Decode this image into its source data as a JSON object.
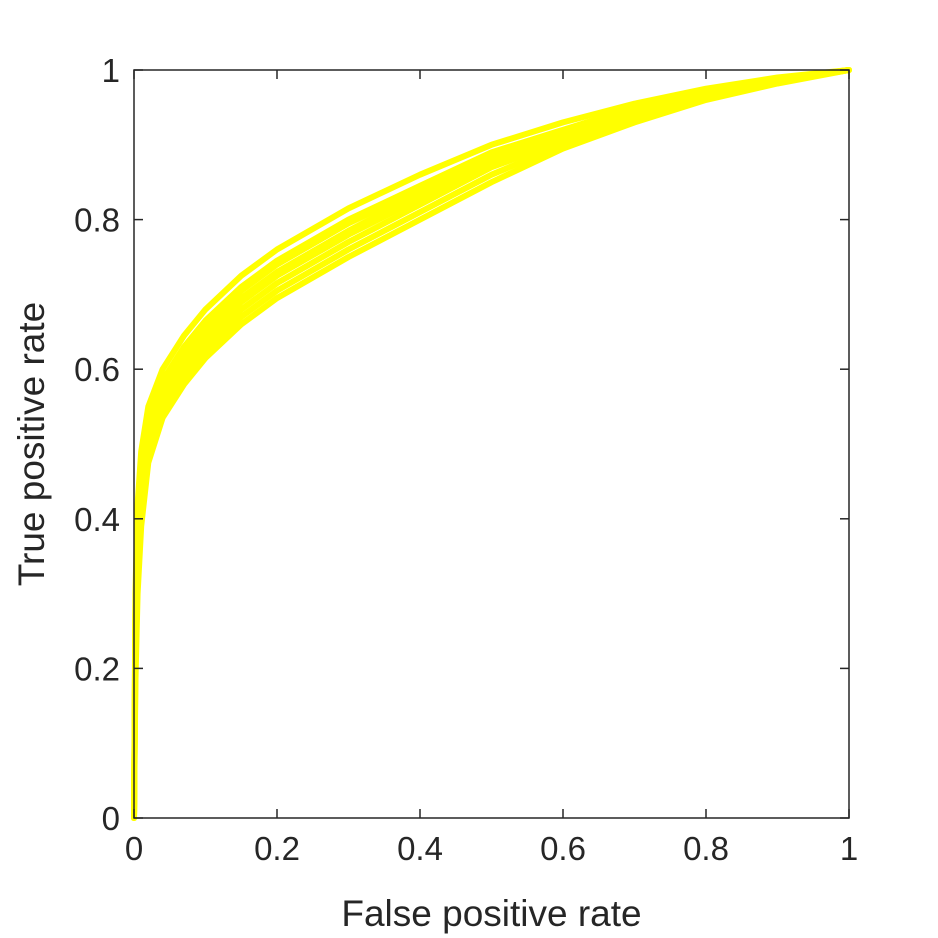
{
  "chart_data": {
    "type": "line",
    "title": "",
    "xlabel": "False positive rate",
    "ylabel": "True positive rate",
    "xlim": [
      0,
      1
    ],
    "ylim": [
      0,
      1
    ],
    "grid": false,
    "legend": "none",
    "x_ticks": [
      0,
      0.2,
      0.4,
      0.6,
      0.8,
      1
    ],
    "x_tick_labels": [
      "0",
      "0.2",
      "0.4",
      "0.6",
      "0.8",
      "1"
    ],
    "y_ticks": [
      0,
      0.2,
      0.4,
      0.6,
      0.8,
      1
    ],
    "y_tick_labels": [
      "0",
      "0.2",
      "0.4",
      "0.6",
      "0.8",
      "1"
    ],
    "series_color": "#ffff00",
    "series": [
      {
        "x": [
          0,
          0.002,
          0.005,
          0.01,
          0.02,
          0.04,
          0.07,
          0.1,
          0.15,
          0.2,
          0.3,
          0.4,
          0.5,
          0.6,
          0.7,
          0.8,
          0.9,
          1.0
        ],
        "y": [
          0,
          0.3,
          0.42,
          0.49,
          0.55,
          0.6,
          0.645,
          0.68,
          0.725,
          0.76,
          0.815,
          0.86,
          0.9,
          0.93,
          0.955,
          0.975,
          0.99,
          1.0
        ]
      },
      {
        "x": [
          0,
          0.002,
          0.005,
          0.01,
          0.02,
          0.04,
          0.07,
          0.1,
          0.15,
          0.2,
          0.3,
          0.4,
          0.5,
          0.6,
          0.7,
          0.8,
          0.9,
          1.0
        ],
        "y": [
          0,
          0.28,
          0.4,
          0.47,
          0.53,
          0.585,
          0.63,
          0.665,
          0.71,
          0.745,
          0.8,
          0.845,
          0.89,
          0.92,
          0.95,
          0.97,
          0.988,
          1.0
        ]
      },
      {
        "x": [
          0,
          0.002,
          0.005,
          0.01,
          0.02,
          0.04,
          0.07,
          0.1,
          0.15,
          0.2,
          0.3,
          0.4,
          0.5,
          0.6,
          0.7,
          0.8,
          0.9,
          1.0
        ],
        "y": [
          0,
          0.25,
          0.37,
          0.45,
          0.515,
          0.57,
          0.615,
          0.65,
          0.695,
          0.73,
          0.785,
          0.835,
          0.88,
          0.915,
          0.945,
          0.968,
          0.986,
          1.0
        ]
      },
      {
        "x": [
          0,
          0.002,
          0.005,
          0.01,
          0.02,
          0.04,
          0.07,
          0.1,
          0.15,
          0.2,
          0.3,
          0.4,
          0.5,
          0.6,
          0.7,
          0.8,
          0.9,
          1.0
        ],
        "y": [
          0,
          0.22,
          0.34,
          0.43,
          0.5,
          0.555,
          0.6,
          0.635,
          0.68,
          0.715,
          0.77,
          0.82,
          0.87,
          0.905,
          0.94,
          0.965,
          0.985,
          1.0
        ]
      },
      {
        "x": [
          0,
          0.002,
          0.005,
          0.01,
          0.02,
          0.04,
          0.07,
          0.1,
          0.15,
          0.2,
          0.3,
          0.4,
          0.5,
          0.6,
          0.7,
          0.8,
          0.9,
          1.0
        ],
        "y": [
          0,
          0.2,
          0.32,
          0.41,
          0.49,
          0.545,
          0.59,
          0.625,
          0.67,
          0.705,
          0.76,
          0.81,
          0.86,
          0.9,
          0.935,
          0.962,
          0.984,
          1.0
        ]
      },
      {
        "x": [
          0,
          0.002,
          0.005,
          0.01,
          0.02,
          0.04,
          0.07,
          0.1,
          0.15,
          0.2,
          0.3,
          0.4,
          0.5,
          0.6,
          0.7,
          0.8,
          0.9,
          1.0
        ],
        "y": [
          0,
          0.18,
          0.3,
          0.39,
          0.475,
          0.535,
          0.58,
          0.615,
          0.66,
          0.695,
          0.75,
          0.8,
          0.85,
          0.895,
          0.93,
          0.96,
          0.982,
          1.0
        ]
      },
      {
        "x": [
          0,
          0.002,
          0.005,
          0.01,
          0.02,
          0.04,
          0.07,
          0.1,
          0.15,
          0.2,
          0.3,
          0.4,
          0.5,
          0.6,
          0.7,
          0.8,
          0.9,
          1.0
        ],
        "y": [
          0,
          0.27,
          0.39,
          0.46,
          0.525,
          0.575,
          0.62,
          0.655,
          0.705,
          0.74,
          0.795,
          0.84,
          0.883,
          0.918,
          0.947,
          0.969,
          0.987,
          1.0
        ]
      },
      {
        "x": [
          0,
          0.002,
          0.005,
          0.01,
          0.02,
          0.04,
          0.07,
          0.1,
          0.15,
          0.2,
          0.3,
          0.4,
          0.5,
          0.6,
          0.7,
          0.8,
          0.9,
          1.0
        ],
        "y": [
          0,
          0.24,
          0.36,
          0.44,
          0.51,
          0.565,
          0.61,
          0.645,
          0.69,
          0.725,
          0.78,
          0.828,
          0.875,
          0.91,
          0.942,
          0.966,
          0.985,
          1.0
        ]
      }
    ]
  }
}
